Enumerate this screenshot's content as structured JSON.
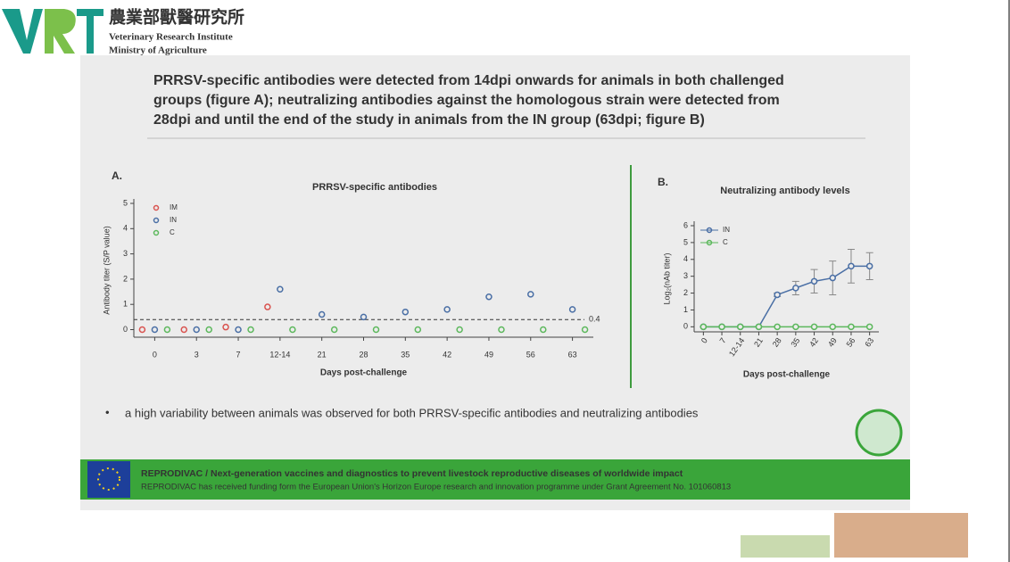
{
  "header": {
    "org_zh": "農業部獸醫研究所",
    "org_en": "Veterinary Research Institute",
    "ministry": "Ministry of Agriculture"
  },
  "slide": {
    "heading": [
      "PRRSV-specific antibodies were detected from 14dpi onwards for animals in both challenged",
      "groups (figure A); neutralizing antibodies against the homologous strain were detected from",
      "28dpi and until the end of the study in animals from the IN group (63dpi; figure B)"
    ],
    "bullet": "a high variability between animals was observed for both PRRSV-specific antibodies and neutralizing antibodies",
    "footer": [
      "REPRODIVAC / Next-generation vaccines and diagnostics to prevent livestock reproductive diseases of worldwide impact",
      "REPRODIVAC has received funding form the European Union's Horizon Europe research and innovation programme under Grant Agreement No. 101060813"
    ]
  },
  "chart_data": [
    {
      "type": "scatter",
      "panel": "A.",
      "title": "PRRSV-specific antibodies",
      "x_label": "Days post-challenge",
      "y_label": "Antibody titer (S/P value)",
      "categories": [
        "0",
        "3",
        "7",
        "12-14",
        "21",
        "28",
        "35",
        "42",
        "49",
        "56",
        "63"
      ],
      "series": [
        {
          "name": "IM",
          "color": "#d9534f",
          "values": [
            0,
            0,
            0.1,
            0.9,
            null,
            null,
            null,
            null,
            null,
            null,
            null
          ]
        },
        {
          "name": "IN",
          "color": "#4a6fa5",
          "values": [
            0,
            0,
            0,
            1.6,
            0.6,
            0.5,
            0.7,
            0.8,
            1.3,
            1.4,
            0.8
          ]
        },
        {
          "name": "C",
          "color": "#5cb85c",
          "values": [
            0,
            0,
            0,
            0,
            0,
            0,
            0,
            0,
            0,
            0,
            0
          ]
        }
      ],
      "threshold": 0.4,
      "ylim": [
        -0.3,
        5
      ],
      "yticks": [
        0,
        1,
        2,
        3,
        4,
        5
      ]
    },
    {
      "type": "line",
      "panel": "B.",
      "title": "Neutralizing antibody levels",
      "x_label": "Days post-challenge",
      "y_label": "Log₂(nAb titer)",
      "categories": [
        "0",
        "7",
        "12-14",
        "21",
        "28",
        "35",
        "42",
        "49",
        "56",
        "63"
      ],
      "series": [
        {
          "name": "IN",
          "color": "#4a6fa5",
          "values": [
            0,
            0,
            0,
            0,
            1.9,
            2.3,
            2.7,
            2.9,
            3.6,
            3.6
          ],
          "errors": [
            0,
            0,
            0,
            0,
            0.1,
            0.4,
            0.7,
            1,
            1,
            0.8
          ]
        },
        {
          "name": "C",
          "color": "#5cb85c",
          "values": [
            0,
            0,
            0,
            0,
            0,
            0,
            0,
            0,
            0,
            0
          ]
        }
      ],
      "ylim": [
        -0.3,
        6
      ],
      "yticks": [
        0,
        1,
        2,
        3,
        4,
        5,
        6
      ]
    }
  ]
}
